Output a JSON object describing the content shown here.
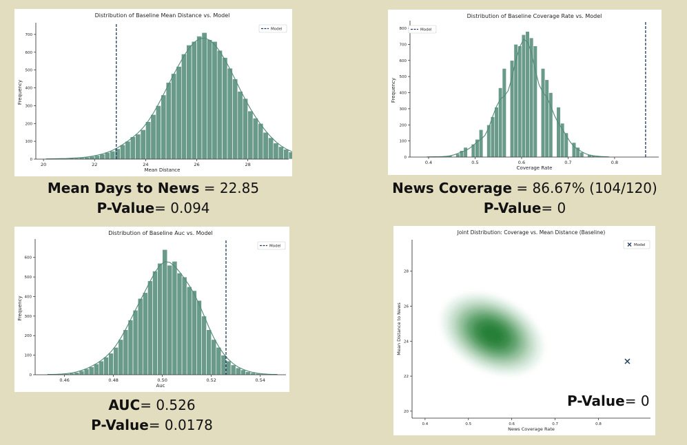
{
  "captions": {
    "c1": {
      "label": "Mean Days to News",
      "value": "= 22.85",
      "plabel": "P-Value",
      "pvalue": "= 0.094"
    },
    "c2": {
      "label": "News Coverage",
      "value": "= 86.67% (104/120)",
      "plabel": "P-Value",
      "pvalue": "= 0"
    },
    "c3": {
      "label": "AUC",
      "value": "= 0.526",
      "plabel": "P-Value",
      "pvalue": "= 0.0178"
    },
    "c4": {
      "plabel": "P-Value",
      "pvalue": "= 0"
    }
  },
  "colors": {
    "bar": "#6a9a8a",
    "kde": "#4f8a78",
    "model_line": "#1f3a5f",
    "density": "#1b7a2e",
    "background": "#e3ddc0"
  },
  "chart_data": [
    {
      "type": "bar",
      "title": "Distribution of Baseline Mean Distance vs. Model",
      "xlabel": "Mean Distance",
      "ylabel": "Frequency",
      "xlim": [
        19.7,
        29.6
      ],
      "ylim": [
        0,
        750
      ],
      "xticks": [
        "20",
        "22",
        "24",
        "26",
        "28"
      ],
      "xtick_values": [
        20,
        22,
        24,
        26,
        28
      ],
      "yticks": [
        "0",
        "100",
        "200",
        "300",
        "400",
        "500",
        "600",
        "700"
      ],
      "ytick_values": [
        0,
        100,
        200,
        300,
        400,
        500,
        600,
        700
      ],
      "bin_start": 20.0,
      "bin_width": 0.2,
      "values": [
        1,
        1,
        2,
        3,
        4,
        5,
        6,
        8,
        11,
        15,
        20,
        28,
        37,
        45,
        58,
        80,
        100,
        125,
        140,
        165,
        210,
        250,
        300,
        360,
        430,
        480,
        520,
        590,
        640,
        660,
        690,
        710,
        670,
        660,
        610,
        570,
        510,
        450,
        380,
        340,
        270,
        230,
        200,
        150,
        120,
        90,
        70,
        55,
        40,
        30,
        22,
        15,
        10,
        6,
        4,
        3,
        2,
        1,
        1,
        1
      ],
      "model_label": "Model",
      "model_value": 22.85,
      "legend_position": "upper right"
    },
    {
      "type": "bar",
      "title": "Distribution of Baseline Coverage Rate vs. Model",
      "xlabel": "Coverage Rate",
      "ylabel": "Frequency",
      "xlim": [
        0.36,
        0.895
      ],
      "ylim": [
        0,
        830
      ],
      "xticks": [
        "0.4",
        "0.5",
        "0.6",
        "0.7",
        "0.8"
      ],
      "xtick_values": [
        0.4,
        0.5,
        0.6,
        0.7,
        0.8
      ],
      "yticks": [
        "0",
        "100",
        "200",
        "300",
        "400",
        "500",
        "600",
        "700",
        "800"
      ],
      "ytick_values": [
        0,
        100,
        200,
        300,
        400,
        500,
        600,
        700,
        800
      ],
      "bin_start": 0.392,
      "bin_width": 0.00833,
      "values": [
        1,
        0,
        2,
        3,
        0,
        5,
        10,
        0,
        20,
        40,
        60,
        0,
        80,
        110,
        170,
        0,
        200,
        250,
        310,
        430,
        550,
        0,
        600,
        700,
        690,
        760,
        780,
        740,
        690,
        0,
        550,
        480,
        400,
        0,
        310,
        210,
        150,
        0,
        90,
        60,
        30,
        0,
        15,
        10,
        5,
        0,
        2,
        1
      ],
      "model_label": "Model",
      "model_value": 0.8667,
      "legend_position": "upper left"
    },
    {
      "type": "bar",
      "title": "Distribution of Baseline Auc vs. Model",
      "xlabel": "Auc",
      "ylabel": "Frequency",
      "xlim": [
        0.448,
        0.5505
      ],
      "ylim": [
        0,
        680
      ],
      "xticks": [
        "0.46",
        "0.48",
        "0.50",
        "0.52",
        "0.54"
      ],
      "xtick_values": [
        0.46,
        0.48,
        0.5,
        0.52,
        0.54
      ],
      "yticks": [
        "0",
        "100",
        "200",
        "300",
        "400",
        "500",
        "600"
      ],
      "ytick_values": [
        0,
        100,
        200,
        300,
        400,
        500,
        600
      ],
      "bin_start": 0.452,
      "bin_width": 0.002,
      "values": [
        1,
        1,
        2,
        3,
        5,
        8,
        12,
        20,
        30,
        40,
        55,
        70,
        90,
        110,
        140,
        180,
        230,
        280,
        330,
        390,
        420,
        480,
        530,
        570,
        640,
        560,
        580,
        520,
        500,
        450,
        430,
        380,
        300,
        230,
        180,
        140,
        100,
        70,
        50,
        35,
        25,
        15,
        10,
        6,
        4,
        2,
        1,
        1
      ],
      "model_label": "Model",
      "model_value": 0.526,
      "legend_position": "upper right"
    },
    {
      "type": "heatmap",
      "title": "Joint Distribution: Coverage vs. Mean Distance (Baseline)",
      "xlabel": "News Coverage Rate",
      "ylabel": "Mean Distance to News",
      "xlim": [
        0.37,
        0.92
      ],
      "ylim": [
        19.6,
        29.8
      ],
      "xticks": [
        "0.4",
        "0.5",
        "0.6",
        "0.7",
        "0.8"
      ],
      "xtick_values": [
        0.4,
        0.5,
        0.6,
        0.7,
        0.8
      ],
      "yticks": [
        "20",
        "22",
        "24",
        "26",
        "28"
      ],
      "ytick_values": [
        20,
        22,
        24,
        26,
        28
      ],
      "density_center": [
        0.555,
        24.4
      ],
      "model_label": "Model",
      "model_point": [
        0.8667,
        22.85
      ],
      "legend_position": "upper right"
    }
  ]
}
